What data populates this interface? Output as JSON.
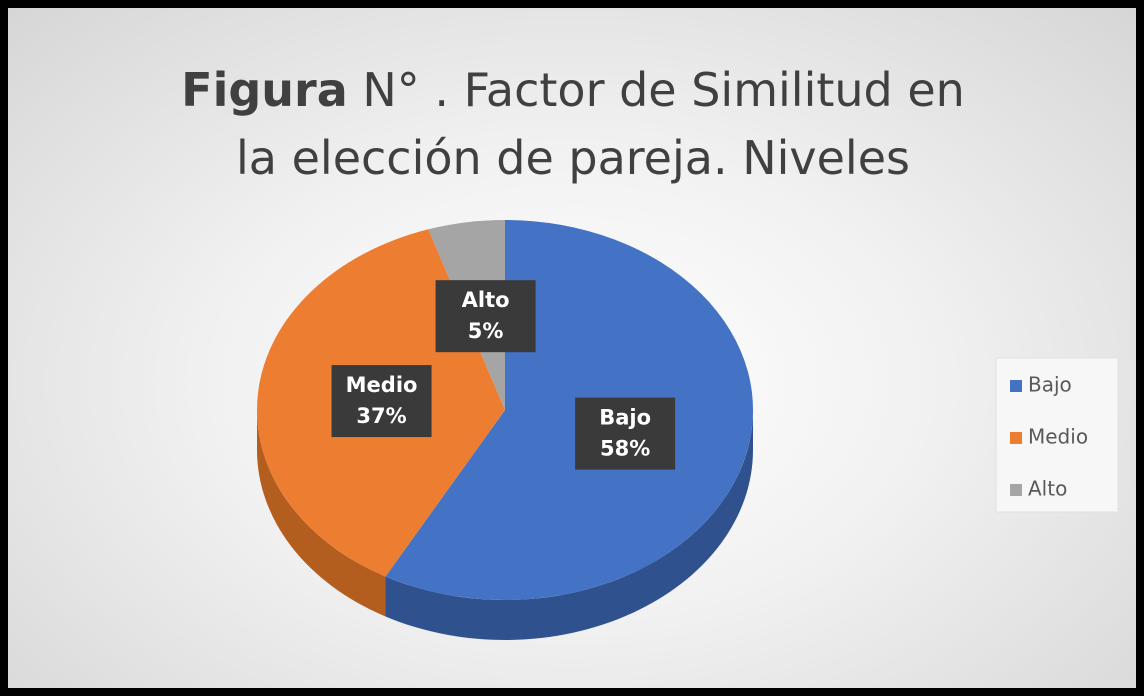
{
  "chart_data": {
    "type": "pie",
    "title_prefix": "Figura",
    "title": "N° . Factor de Similitud en la elección de pareja. Niveles",
    "categories": [
      "Bajo",
      "Medio",
      "Alto"
    ],
    "values": [
      58,
      37,
      5
    ],
    "value_labels": [
      "58%",
      "37%",
      "5%"
    ],
    "colors": [
      "#4472c4",
      "#ed7d31",
      "#a5a5a5"
    ],
    "side_colors": [
      "#2f528f",
      "#b35d1f",
      "#7c7c7c"
    ],
    "legend": "right"
  }
}
